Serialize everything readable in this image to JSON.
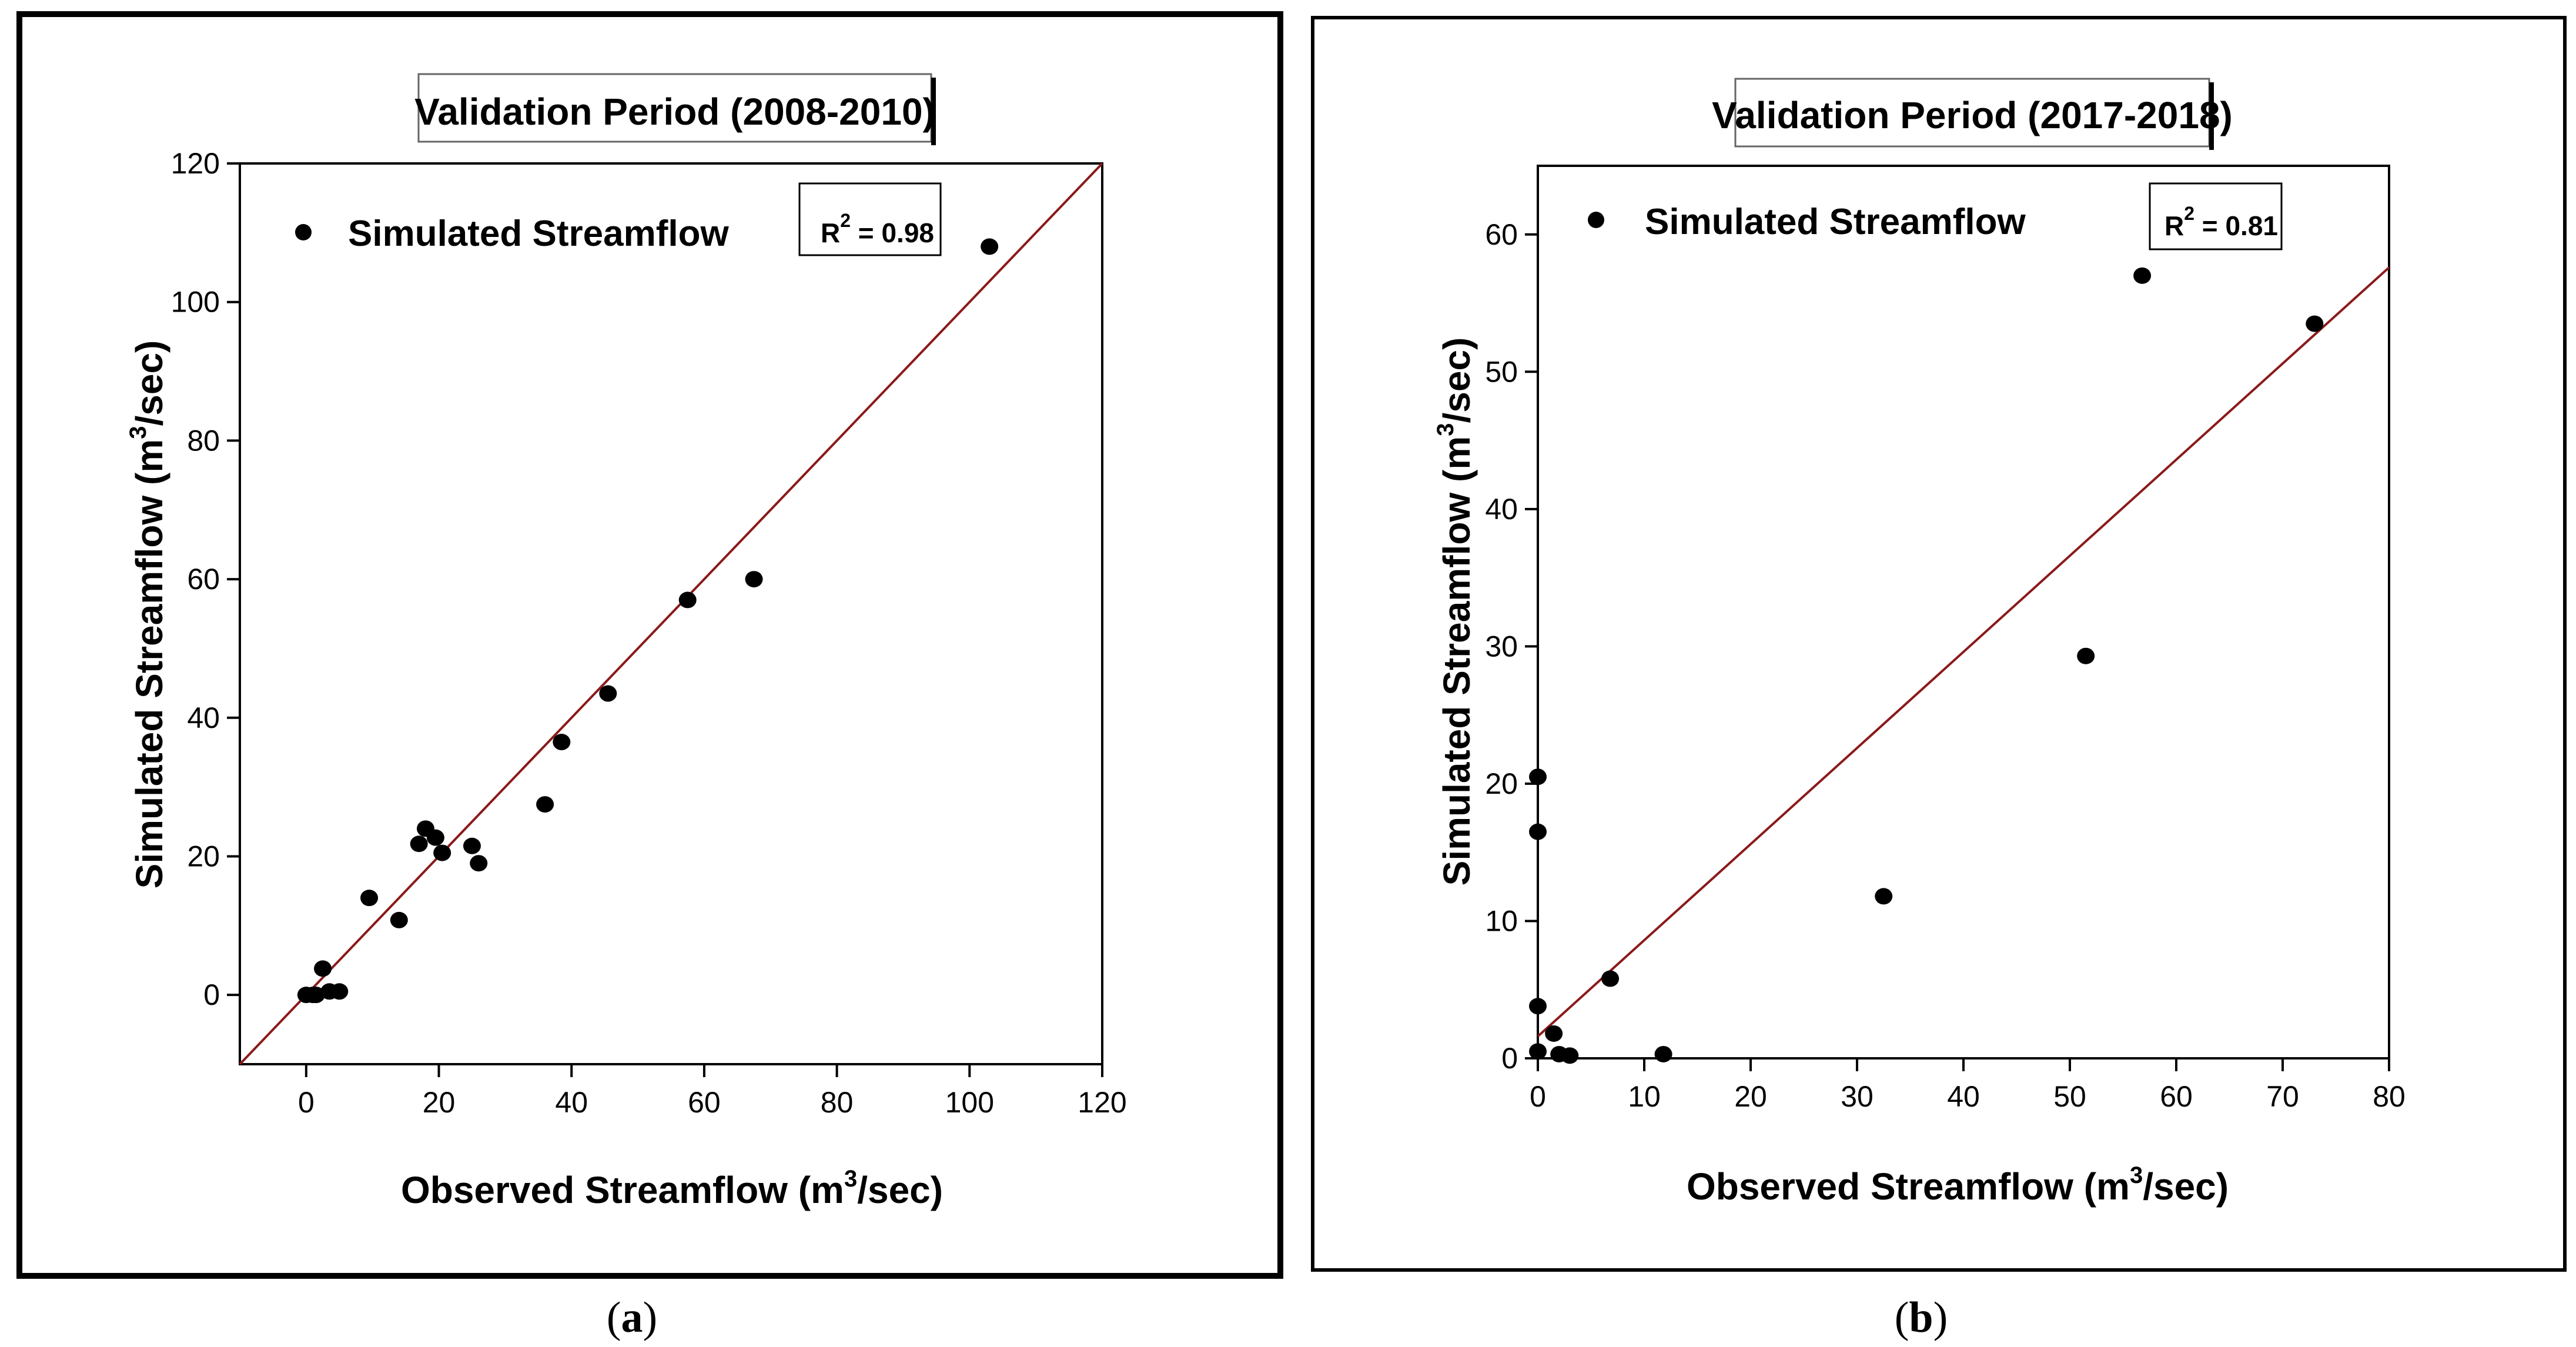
{
  "chart_data": [
    {
      "type": "scatter",
      "title": "Validation Period (2008-2010)",
      "xlabel": "Observed Streamflow (m",
      "xlabel_sup": "3",
      "xlabel_tail": "/sec)",
      "ylabel": "Simulated Streamflow (m",
      "ylabel_sup": "3",
      "ylabel_tail": "/sec)",
      "xlim": [
        -10,
        120
      ],
      "ylim": [
        -10,
        120
      ],
      "xticks": [
        "0",
        "20",
        "40",
        "60",
        "80",
        "100",
        "120"
      ],
      "yticks": [
        "0",
        "20",
        "40",
        "60",
        "80",
        "100",
        "120"
      ],
      "legend": "Simulated Streamflow",
      "r2_label": "R",
      "r2_sup": "2",
      "r2_value": " = 0.98",
      "fit_line": {
        "slope": 1.0,
        "intercept": 0.0
      },
      "series": [
        {
          "name": "Simulated Streamflow",
          "x": [
            0,
            1,
            1.5,
            2.5,
            3.5,
            5,
            9.5,
            14,
            17,
            18,
            19.5,
            20.5,
            25,
            26,
            36,
            38.5,
            45.5,
            57.5,
            67.5,
            103
          ],
          "y": [
            0,
            0,
            0,
            3.8,
            0.5,
            0.5,
            14,
            10.8,
            21.8,
            24,
            22.7,
            20.5,
            21.5,
            19,
            27.5,
            36.5,
            43.5,
            57,
            60,
            108
          ]
        }
      ],
      "caption": "a"
    },
    {
      "type": "scatter",
      "title": "Validation Period (2017-2018)",
      "xlabel": "Observed Streamflow (m",
      "xlabel_sup": "3",
      "xlabel_tail": "/sec)",
      "ylabel": "Simulated Streamflow (m",
      "ylabel_sup": "3",
      "ylabel_tail": "/sec)",
      "xlim": [
        0,
        80
      ],
      "ylim": [
        0,
        65
      ],
      "xticks": [
        "0",
        "10",
        "20",
        "30",
        "40",
        "50",
        "60",
        "70",
        "80"
      ],
      "yticks": [
        "0",
        "10",
        "20",
        "30",
        "40",
        "50",
        "60"
      ],
      "legend": "Simulated Streamflow",
      "r2_label": "R",
      "r2_sup": "2",
      "r2_value": " = 0.81",
      "fit_line": {
        "slope": 0.7,
        "intercept": 1.6
      },
      "series": [
        {
          "name": "Simulated Streamflow",
          "x": [
            0,
            0,
            0,
            0,
            1.5,
            2,
            3,
            6.8,
            11.8,
            32.5,
            51.5,
            56.8,
            73
          ],
          "y": [
            20.5,
            16.5,
            3.8,
            0.5,
            1.8,
            0.3,
            0.2,
            5.8,
            0.3,
            11.8,
            29.3,
            57,
            53.5
          ]
        }
      ],
      "caption": "b"
    }
  ]
}
